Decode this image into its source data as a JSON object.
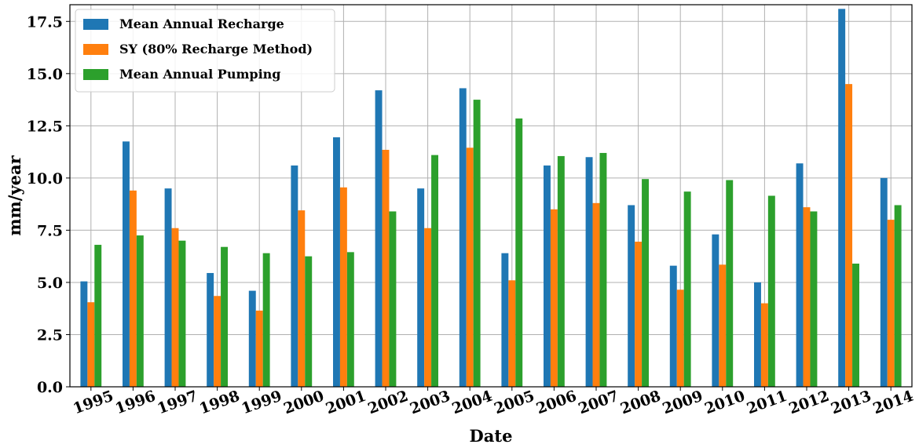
{
  "chart_data": {
    "type": "bar",
    "title": "",
    "xlabel": "Date",
    "ylabel": "mm/year",
    "ylim": [
      0,
      18.3
    ],
    "yticks": [
      "0.0",
      "2.5",
      "5.0",
      "7.5",
      "10.0",
      "12.5",
      "15.0",
      "17.5"
    ],
    "categories": [
      "1995",
      "1996",
      "1997",
      "1998",
      "1999",
      "2000",
      "2001",
      "2002",
      "2003",
      "2004",
      "2005",
      "2006",
      "2007",
      "2008",
      "2009",
      "2010",
      "2011",
      "2012",
      "2013",
      "2014"
    ],
    "series": [
      {
        "name": "Mean Annual Recharge",
        "color": "#1f77b4",
        "values": [
          5.05,
          11.75,
          9.5,
          5.45,
          4.6,
          10.6,
          11.95,
          14.2,
          9.5,
          14.3,
          6.4,
          10.6,
          11.0,
          8.7,
          5.8,
          7.3,
          5.0,
          10.7,
          18.1,
          10.0
        ]
      },
      {
        "name": "SY (80% Recharge Method)",
        "color": "#ff7f0e",
        "values": [
          4.05,
          9.4,
          7.6,
          4.35,
          3.65,
          8.45,
          9.55,
          11.35,
          7.6,
          11.45,
          5.1,
          8.5,
          8.8,
          6.95,
          4.65,
          5.85,
          4.0,
          8.6,
          14.5,
          8.0
        ]
      },
      {
        "name": "Mean Annual Pumping",
        "color": "#2ca02c",
        "values": [
          6.8,
          7.25,
          7.0,
          6.7,
          6.4,
          6.25,
          6.45,
          8.4,
          11.1,
          13.75,
          12.85,
          11.05,
          11.2,
          9.95,
          9.35,
          9.9,
          9.15,
          8.4,
          5.9,
          8.7
        ]
      }
    ],
    "grid": true,
    "legend_position": "top-left"
  }
}
